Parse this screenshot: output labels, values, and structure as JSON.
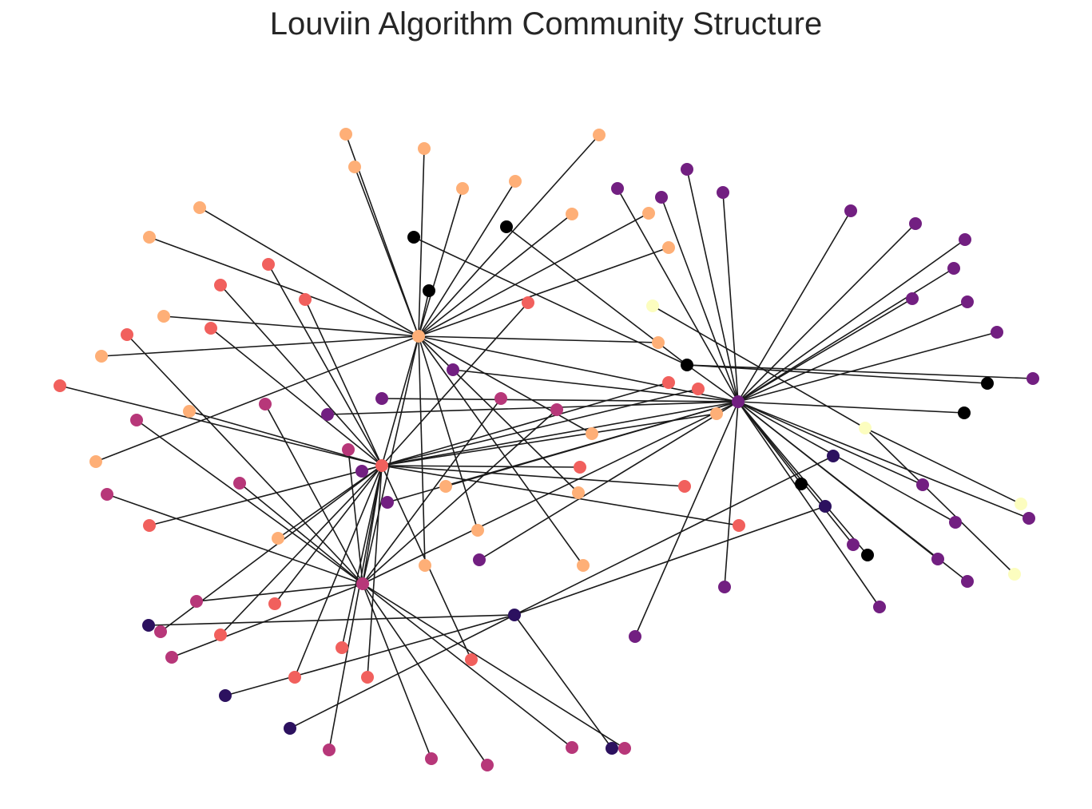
{
  "title": "Louviin Algorithm Community Structure",
  "edge_color": "#1a1a1a",
  "community_colors": {
    "peach": "#feaf77",
    "black": "#000000",
    "purple": "#721f81",
    "salmon": "#f1605d",
    "magenta": "#b73779",
    "navy": "#2c115f",
    "cream": "#fcfdbf"
  },
  "hubs": [
    {
      "id": "peach-hub",
      "community": "peach"
    },
    {
      "id": "purple-hub",
      "community": "purple"
    },
    {
      "id": "salmon-hub",
      "community": "salmon"
    },
    {
      "id": "magenta-hub",
      "community": "magenta"
    },
    {
      "id": "navy-hub",
      "community": "navy"
    },
    {
      "id": "black-hub",
      "community": "black"
    },
    {
      "id": "cream-hub",
      "community": "cream"
    }
  ]
}
